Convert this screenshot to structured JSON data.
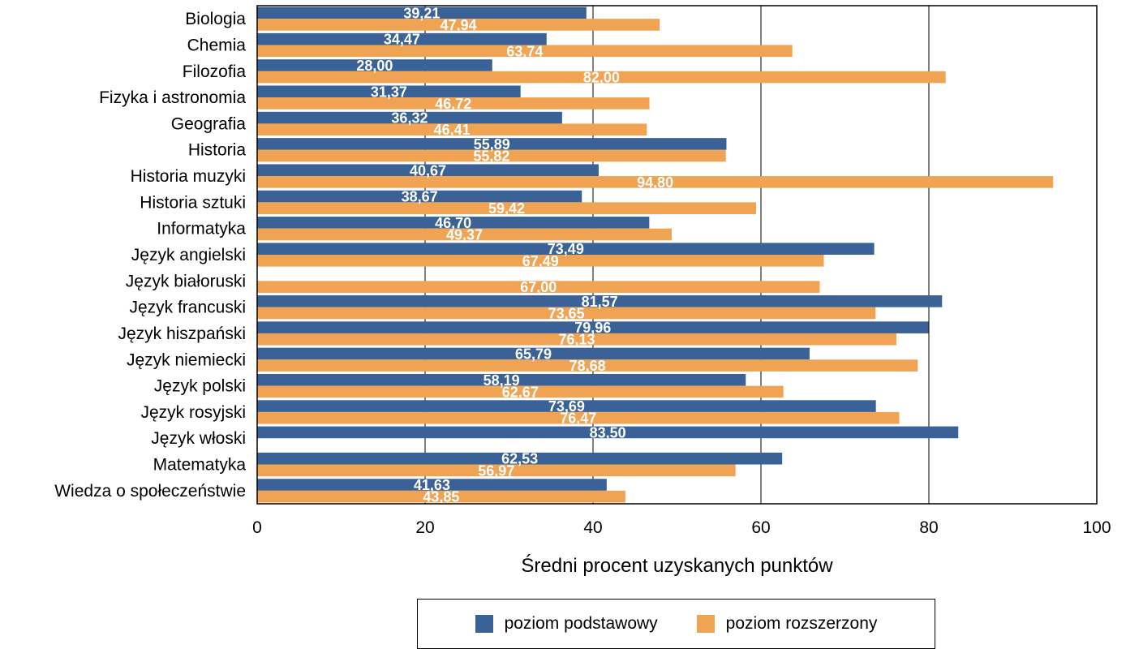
{
  "chart_data": {
    "type": "bar",
    "orientation": "horizontal",
    "title": "",
    "xlabel": "Średni procent uzyskanych punktów",
    "ylabel": "",
    "xlim": [
      0,
      100
    ],
    "xticks": [
      "0",
      "20",
      "40",
      "60",
      "80",
      "100"
    ],
    "grid": true,
    "legend_position": "bottom",
    "categories": [
      "Biologia",
      "Chemia",
      "Filozofia",
      "Fizyka i astronomia",
      "Geografia",
      "Historia",
      "Historia muzyki",
      "Historia sztuki",
      "Informatyka",
      "Język angielski",
      "Język białoruski",
      "Język francuski",
      "Język hiszpański",
      "Język niemiecki",
      "Język polski",
      "Język rosyjski",
      "Język włoski",
      "Matematyka",
      "Wiedza o społeczeństwie"
    ],
    "series": [
      {
        "name": "poziom podstawowy",
        "color": "#3A6296",
        "values": [
          39.21,
          34.47,
          28.0,
          31.37,
          36.32,
          55.89,
          40.67,
          38.67,
          46.7,
          73.49,
          null,
          81.57,
          79.96,
          65.79,
          58.19,
          73.69,
          83.5,
          62.53,
          41.63
        ],
        "labels": [
          "39,21",
          "34,47",
          "28,00",
          "31,37",
          "36,32",
          "55,89",
          "40,67",
          "38,67",
          "46,70",
          "73,49",
          "",
          "81,57",
          "79,96",
          "65,79",
          "58,19",
          "73,69",
          "83,50",
          "62,53",
          "41,63"
        ]
      },
      {
        "name": "poziom rozszerzony",
        "color": "#F0A352",
        "values": [
          47.94,
          63.74,
          82.0,
          46.72,
          46.41,
          55.82,
          94.8,
          59.42,
          49.37,
          67.49,
          67.0,
          73.65,
          76.13,
          78.68,
          62.67,
          76.47,
          null,
          56.97,
          43.85
        ],
        "labels": [
          "47,94",
          "63,74",
          "82,00",
          "46,72",
          "46,41",
          "55,82",
          "94,80",
          "59,42",
          "49,37",
          "67,49",
          "67,00",
          "73,65",
          "76,13",
          "78,68",
          "62,67",
          "76,47",
          "",
          "56,97",
          "43,85"
        ]
      }
    ]
  }
}
